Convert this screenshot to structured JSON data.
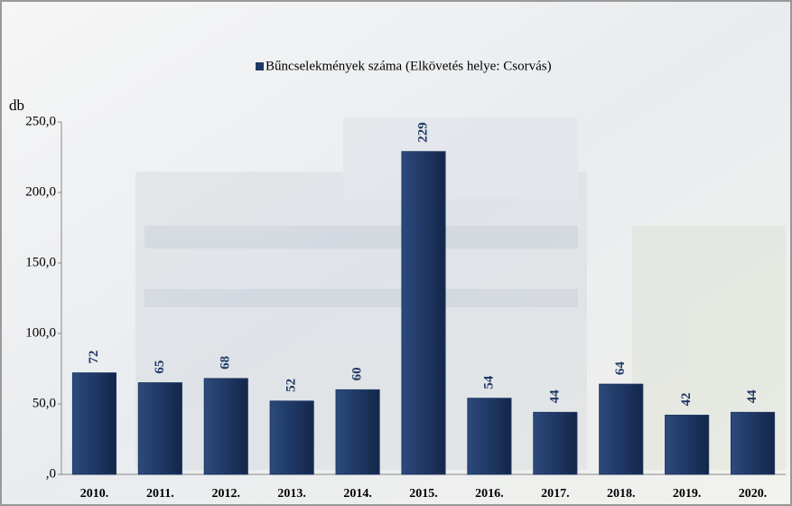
{
  "chart_data": {
    "type": "bar",
    "y_axis_label": "db",
    "categories": [
      "2010.",
      "2011.",
      "2012.",
      "2013.",
      "2014.",
      "2015.",
      "2016.",
      "2017.",
      "2018.",
      "2019.",
      "2020."
    ],
    "series": [
      {
        "name": "Bűncselekmények száma (Elkövetés helye: Csorvás)",
        "color": "#1f3864",
        "values": [
          72,
          65,
          68,
          52,
          60,
          229,
          54,
          44,
          64,
          42,
          44
        ]
      }
    ],
    "ylim": [
      0,
      250
    ],
    "yticks": [
      {
        "value": 0,
        "label": ",0"
      },
      {
        "value": 50,
        "label": "50,0"
      },
      {
        "value": 100,
        "label": "100,0"
      },
      {
        "value": 150,
        "label": "150,0"
      },
      {
        "value": 200,
        "label": "200,0"
      },
      {
        "value": 250,
        "label": "250,0"
      }
    ],
    "grid": false,
    "legend": "top"
  }
}
